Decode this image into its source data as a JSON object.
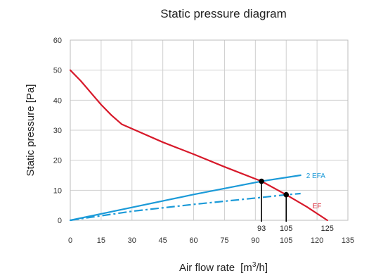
{
  "chart_data": {
    "type": "line",
    "title": "Static pressure diagram",
    "xlabel": "Air flow rate",
    "xlabel_unit_prefix": "[m",
    "xlabel_unit_exp": "3",
    "xlabel_unit_suffix": "/h]",
    "ylabel": "Static pressure [Pa]",
    "xlim": [
      0,
      135
    ],
    "ylim": [
      0,
      60
    ],
    "x_ticks": [
      0,
      15,
      30,
      45,
      60,
      75,
      90,
      105,
      120,
      135
    ],
    "y_ticks": [
      0,
      10,
      20,
      30,
      40,
      50,
      60
    ],
    "grid": true,
    "series": [
      {
        "name": "EF",
        "color": "#d7192a",
        "style": "solid",
        "x": [
          0,
          5,
          10,
          15,
          20,
          25,
          30,
          45,
          60,
          75,
          90,
          93,
          105,
          115,
          125
        ],
        "y": [
          50,
          46.5,
          42.5,
          38.5,
          35,
          32,
          30.5,
          26,
          22,
          17.8,
          13.8,
          13,
          8.5,
          4.5,
          0
        ]
      },
      {
        "name": "2 EFA",
        "color": "#1b9ad8",
        "style": "solid",
        "x": [
          0,
          30,
          60,
          93,
          112
        ],
        "y": [
          0,
          4.3,
          8.6,
          13,
          15
        ]
      },
      {
        "name": "",
        "color": "#1b9ad8",
        "style": "dashdot",
        "x": [
          0,
          30,
          60,
          90,
          105,
          112
        ],
        "y": [
          0,
          3,
          5.3,
          7.4,
          8.5,
          8.9
        ]
      }
    ],
    "operating_points": [
      {
        "x": 93,
        "y": 13,
        "label": "93"
      },
      {
        "x": 105,
        "y": 8.5,
        "label": "105"
      }
    ],
    "annotations": [
      {
        "text": "125",
        "x": 125
      }
    ]
  }
}
